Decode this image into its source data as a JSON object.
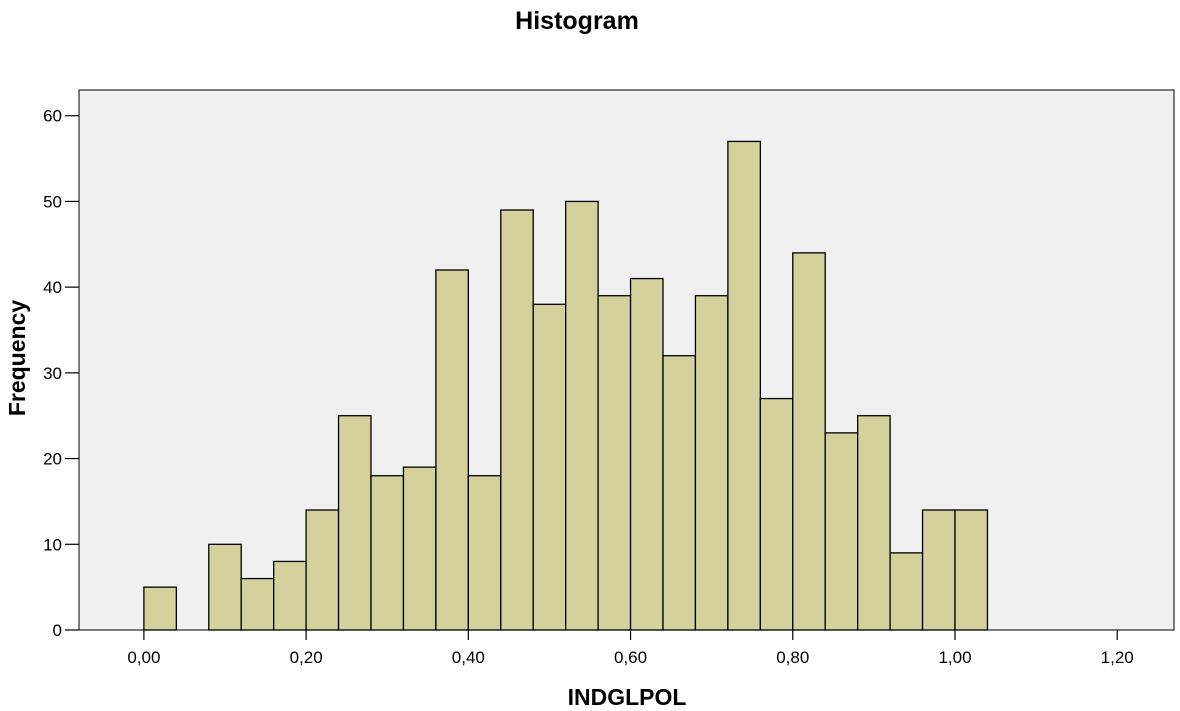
{
  "chart_data": {
    "type": "bar",
    "title": "Histogram",
    "xlabel": "INDGLPOL",
    "ylabel": "Frequency",
    "xlim": [
      -0.08,
      1.27
    ],
    "ylim": [
      0,
      63
    ],
    "bin_width": 0.04,
    "bins_start": [
      0.0,
      0.08,
      0.12,
      0.16,
      0.2,
      0.24,
      0.28,
      0.32,
      0.36,
      0.4,
      0.44,
      0.48,
      0.52,
      0.56,
      0.6,
      0.64,
      0.68,
      0.72,
      0.76,
      0.8,
      0.84,
      0.88,
      0.92,
      0.96,
      1.0
    ],
    "values": [
      5,
      10,
      6,
      8,
      14,
      25,
      18,
      19,
      42,
      18,
      49,
      38,
      50,
      39,
      41,
      32,
      39,
      57,
      27,
      44,
      23,
      25,
      9,
      14,
      14
    ],
    "x_ticks": [
      0.0,
      0.2,
      0.4,
      0.6,
      0.8,
      1.0,
      1.2
    ],
    "x_tick_labels": [
      "0,00",
      "0,20",
      "0,40",
      "0,60",
      "0,80",
      "1,00",
      "1,20"
    ],
    "y_ticks": [
      0,
      10,
      20,
      30,
      40,
      50,
      60
    ],
    "y_tick_labels": [
      "0",
      "10",
      "20",
      "30",
      "40",
      "50",
      "60"
    ],
    "grid": false,
    "legend": "none",
    "colors": {
      "bar_fill": "#d5d19c",
      "bar_stroke": "#000000",
      "plot_background": "#f0f0f0",
      "axis": "#000000"
    }
  }
}
